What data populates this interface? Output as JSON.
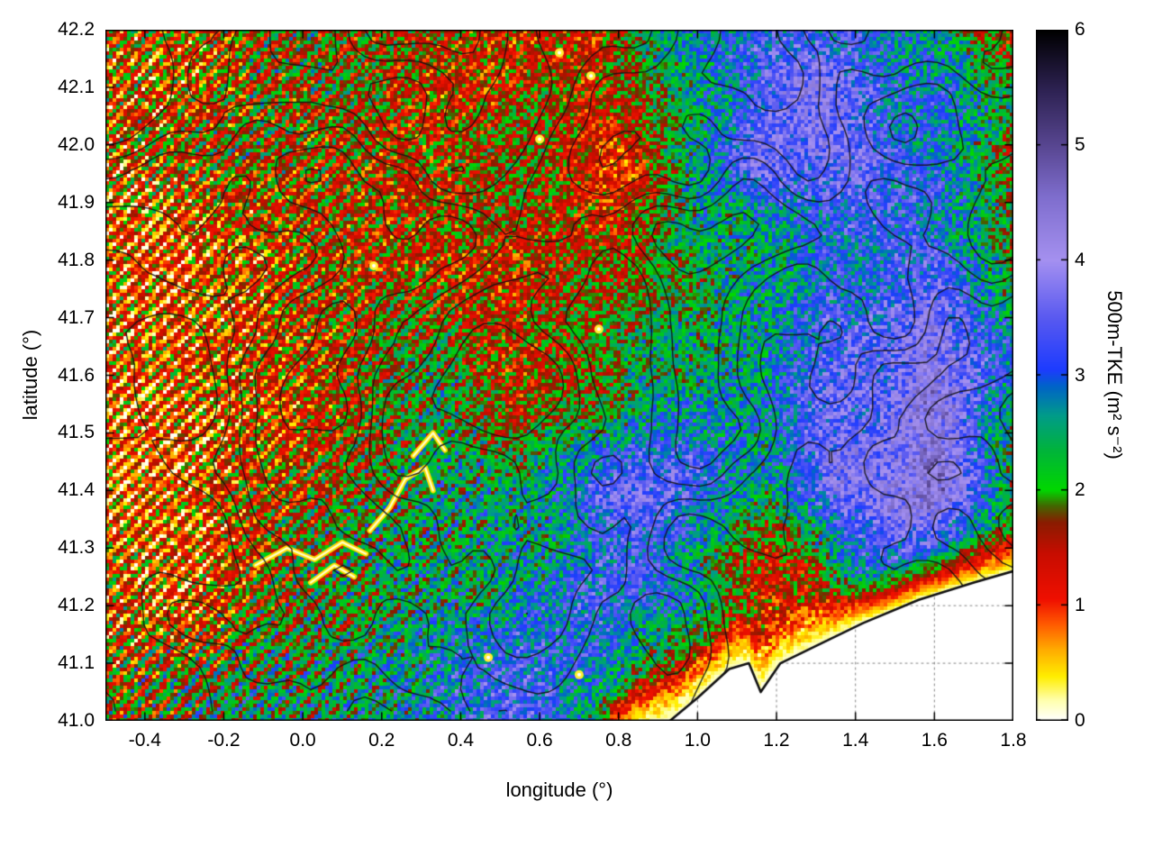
{
  "chart_data": {
    "type": "heatmap",
    "title": "",
    "xlabel": "longitude (°)",
    "ylabel": "latitude (°)",
    "xlim": [
      -0.5,
      1.8
    ],
    "ylim": [
      41.0,
      42.2
    ],
    "grid": "dotted, visible only over the no-data sea region",
    "xticks": [
      -0.4,
      -0.2,
      0.0,
      0.2,
      0.4,
      0.6,
      0.8,
      1.0,
      1.2,
      1.4,
      1.6,
      1.8
    ],
    "xtick_labels": [
      "-0.4",
      "-0.2",
      "0.0",
      "0.2",
      "0.4",
      "0.6",
      "0.8",
      "1.0",
      "1.2",
      "1.4",
      "1.6",
      "1.8"
    ],
    "yticks": [
      41.0,
      41.1,
      41.2,
      41.3,
      41.4,
      41.5,
      41.6,
      41.7,
      41.8,
      41.9,
      42.0,
      42.1,
      42.2
    ],
    "ytick_labels": [
      "41.0",
      "41.1",
      "41.2",
      "41.3",
      "41.4",
      "41.5",
      "41.6",
      "41.7",
      "41.8",
      "41.9",
      "42.0",
      "42.1",
      "42.2"
    ],
    "colorbar": {
      "label": "500m-TKE (m² s⁻²)",
      "min": 0,
      "max": 6,
      "ticks": [
        0,
        1,
        2,
        3,
        4,
        5,
        6
      ],
      "tick_labels": [
        "0",
        "1",
        "2",
        "3",
        "4",
        "5",
        "6"
      ],
      "position": "right",
      "palette": [
        [
          0.0,
          "#ffffff"
        ],
        [
          0.18,
          "#ffffaa"
        ],
        [
          0.38,
          "#ffee00"
        ],
        [
          0.62,
          "#ffaa00"
        ],
        [
          0.85,
          "#ff5500"
        ],
        [
          1.05,
          "#f01000"
        ],
        [
          1.45,
          "#c80d00"
        ],
        [
          1.72,
          "#8a1c00"
        ],
        [
          1.86,
          "#456400"
        ],
        [
          2.0,
          "#00d800"
        ],
        [
          2.35,
          "#00b43c"
        ],
        [
          2.65,
          "#009c8a"
        ],
        [
          2.9,
          "#0064c8"
        ],
        [
          3.05,
          "#1e3cff"
        ],
        [
          3.5,
          "#5a5af0"
        ],
        [
          4.0,
          "#a591f0"
        ],
        [
          4.55,
          "#7f6ece"
        ],
        [
          5.0,
          "#584691"
        ],
        [
          5.5,
          "#2c2150"
        ],
        [
          6.0,
          "#000000"
        ]
      ]
    },
    "grid_values": {
      "description": "Approximate regional mean 500m-TKE (m2 s-2) read from the map colors; rows from lat 42.2 (top) to 41.0 (bottom), cols from lon -0.5 to 1.8",
      "lons": [
        -0.5,
        -0.29,
        -0.08,
        0.13,
        0.34,
        0.55,
        0.75,
        0.96,
        1.17,
        1.38,
        1.59,
        1.8
      ],
      "lats": [
        42.2,
        42.0,
        41.8,
        41.6,
        41.4,
        41.2,
        41.0
      ],
      "values": [
        [
          1.8,
          1.6,
          1.9,
          1.7,
          1.6,
          1.8,
          1.4,
          2.6,
          3.0,
          2.9,
          2.7,
          1.6
        ],
        [
          1.4,
          1.6,
          2.0,
          1.7,
          1.3,
          1.6,
          1.4,
          2.4,
          3.2,
          3.3,
          2.9,
          2.4
        ],
        [
          1.2,
          1.1,
          1.3,
          1.6,
          1.3,
          1.2,
          1.6,
          2.0,
          2.6,
          3.0,
          3.4,
          2.0
        ],
        [
          1.3,
          1.2,
          1.2,
          1.6,
          2.4,
          1.4,
          1.6,
          2.2,
          2.6,
          3.4,
          3.9,
          2.4
        ],
        [
          1.2,
          1.1,
          1.3,
          1.9,
          2.3,
          2.6,
          3.0,
          3.1,
          2.1,
          3.7,
          4.0,
          2.1
        ],
        [
          1.1,
          0.9,
          1.6,
          2.1,
          2.5,
          3.1,
          3.3,
          2.4,
          1.6,
          2.1,
          2.4,
          1.3
        ],
        [
          1.6,
          1.9,
          2.1,
          2.3,
          2.7,
          2.9,
          2.4,
          1.1,
          0.6,
          0.3,
          0.2,
          0.2
        ]
      ]
    },
    "sea": {
      "description": "White no-data sea area in bottom-right corner bounded by a black coastline; TKE drops to 0 (yellow/white band) along the shore",
      "fill": "#ffffff",
      "coastline_color": "#111111",
      "coastline": [
        [
          0.78,
          40.96
        ],
        [
          0.86,
          40.99
        ],
        [
          0.93,
          41.0
        ],
        [
          1.0,
          41.04
        ],
        [
          1.08,
          41.09
        ],
        [
          1.13,
          41.1
        ],
        [
          1.16,
          41.05
        ],
        [
          1.21,
          41.1
        ],
        [
          1.3,
          41.13
        ],
        [
          1.42,
          41.17
        ],
        [
          1.56,
          41.21
        ],
        [
          1.7,
          41.24
        ],
        [
          1.8,
          41.26
        ]
      ]
    },
    "contours": {
      "description": "Black terrain/elevation contour lines overlaid on the TKE field",
      "color": "#141414",
      "levels": [
        0.46,
        0.55,
        0.63,
        0.71,
        0.79
      ]
    },
    "low_tke_features": {
      "description": "Bright yellow/white squiggly valley lines and spots of near-zero TKE",
      "lines": [
        [
          [
            -0.12,
            41.27
          ],
          [
            -0.04,
            41.3
          ],
          [
            0.03,
            41.28
          ],
          [
            0.1,
            41.31
          ],
          [
            0.16,
            41.29
          ]
        ],
        [
          [
            0.02,
            41.24
          ],
          [
            0.08,
            41.27
          ],
          [
            0.13,
            41.25
          ]
        ],
        [
          [
            0.17,
            41.33
          ],
          [
            0.22,
            41.37
          ],
          [
            0.26,
            41.42
          ],
          [
            0.31,
            41.44
          ],
          [
            0.33,
            41.4
          ]
        ],
        [
          [
            0.28,
            41.46
          ],
          [
            0.33,
            41.5
          ],
          [
            0.36,
            41.47
          ]
        ]
      ],
      "spots": [
        [
          0.18,
          41.79
        ],
        [
          0.75,
          41.68
        ],
        [
          0.6,
          42.01
        ],
        [
          0.65,
          42.16
        ],
        [
          0.7,
          41.08
        ],
        [
          0.47,
          41.11
        ],
        [
          0.73,
          42.12
        ]
      ]
    },
    "pattern_notes": "West half dominated by red (~1-1.5) with diagonal SW-NE green striping; mottled green (~2) elsewhere; blue/purple patches (3-4+) in the east and south-center; orange/yellow band along the coast"
  }
}
